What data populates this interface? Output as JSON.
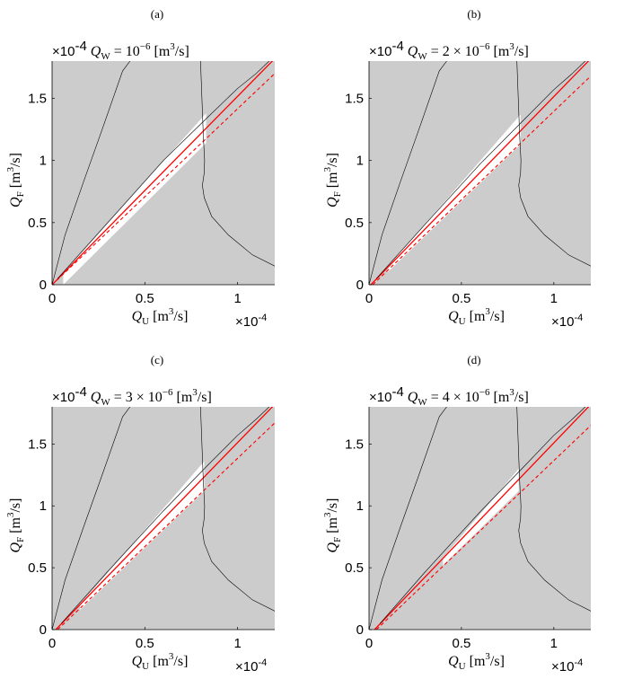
{
  "chart_data": [
    {
      "type": "area",
      "panel_label": "(a)",
      "title": "Q_W = 10^{-6} [m^3/s]",
      "title_parts": {
        "exp_prefix": "×10-4",
        "lhs": "Q",
        "lhs_sub": "W",
        "eq": " = ",
        "mantissa": "",
        "base": "10",
        "base_exp": "−6",
        "unit": "[m",
        "unit_exp": "3",
        "unit_tail": "/s]"
      },
      "xlabel": "Q_U [m^3/s]",
      "ylabel": "Q_F [m^3/s]",
      "x_exponent_label": "×10-4",
      "xlim": [
        0,
        1.2
      ],
      "ylim": [
        0,
        1.8
      ],
      "x_scale": "1e-4",
      "y_scale": "1e-4",
      "x_ticks": [
        0,
        0.5,
        1
      ],
      "x_tick_labels": [
        "0",
        "0.5",
        "1"
      ],
      "y_ticks": [
        0,
        0.5,
        1,
        1.5
      ],
      "y_tick_labels": [
        "0",
        "0.5",
        "1",
        "1.5"
      ],
      "background_color": "#cccccc",
      "feasible_color": "#ffffff",
      "series": [
        {
          "style": "solid-red",
          "color": "#ff0000",
          "x": [
            0,
            1.2
          ],
          "y": [
            0,
            1.82
          ]
        },
        {
          "style": "dashed-red",
          "color": "#ff0000",
          "x": [
            0,
            1.2
          ],
          "y": [
            0,
            1.7
          ]
        },
        {
          "style": "thin-black",
          "color": "#000000",
          "x": [
            0,
            0.07,
            0.17,
            0.27,
            0.38,
            0.42
          ],
          "y": [
            0,
            0.4,
            0.83,
            1.25,
            1.72,
            1.8
          ]
        },
        {
          "style": "thin-black",
          "color": "#000000",
          "x": [
            0.8,
            0.805,
            0.81,
            0.815,
            0.822,
            0.82,
            0.81,
            0.82,
            0.86,
            0.95,
            1.08,
            1.2
          ],
          "y": [
            1.8,
            1.6,
            1.4,
            1.2,
            1.0,
            0.9,
            0.8,
            0.7,
            0.55,
            0.4,
            0.24,
            0.15
          ]
        },
        {
          "style": "thin-black",
          "color": "#000000",
          "x": [
            0.03,
            0.3,
            0.6,
            0.84,
            1.0,
            1.1,
            1.17
          ],
          "y": [
            0.05,
            0.5,
            1.0,
            1.35,
            1.58,
            1.7,
            1.8
          ]
        }
      ],
      "feasible_region": {
        "x": [
          0.06,
          0.83,
          0.83,
          0.06
        ],
        "y": [
          0.09,
          1.38,
          1.14,
          0.0
        ]
      }
    },
    {
      "type": "area",
      "panel_label": "(b)",
      "title": "Q_W = 2 × 10^{-6} [m^3/s]",
      "title_parts": {
        "exp_prefix": "×10-4",
        "lhs": "Q",
        "lhs_sub": "W",
        "eq": " = ",
        "mantissa": "2 × ",
        "base": "10",
        "base_exp": "−6",
        "unit": "[m",
        "unit_exp": "3",
        "unit_tail": "/s]"
      },
      "xlabel": "Q_U [m^3/s]",
      "ylabel": "Q_F [m^3/s]",
      "x_exponent_label": "×10-4",
      "xlim": [
        0,
        1.2
      ],
      "ylim": [
        0,
        1.8
      ],
      "x_scale": "1e-4",
      "y_scale": "1e-4",
      "x_ticks": [
        0,
        0.5,
        1
      ],
      "x_tick_labels": [
        "0",
        "0.5",
        "1"
      ],
      "y_ticks": [
        0,
        0.5,
        1,
        1.5
      ],
      "y_tick_labels": [
        "0",
        "0.5",
        "1",
        "1.5"
      ],
      "background_color": "#cccccc",
      "feasible_color": "#ffffff",
      "series": [
        {
          "style": "solid-red",
          "color": "#ff0000",
          "x": [
            0.01,
            1.2
          ],
          "y": [
            0,
            1.82
          ]
        },
        {
          "style": "dashed-red",
          "color": "#ff0000",
          "x": [
            0.02,
            1.2
          ],
          "y": [
            0,
            1.68
          ]
        },
        {
          "style": "thin-black",
          "color": "#000000",
          "x": [
            0,
            0.07,
            0.17,
            0.27,
            0.38,
            0.42
          ],
          "y": [
            0,
            0.4,
            0.83,
            1.25,
            1.72,
            1.8
          ]
        },
        {
          "style": "thin-black",
          "color": "#000000",
          "x": [
            0.8,
            0.805,
            0.81,
            0.815,
            0.822,
            0.82,
            0.81,
            0.82,
            0.86,
            0.95,
            1.08,
            1.2
          ],
          "y": [
            1.8,
            1.6,
            1.4,
            1.2,
            1.0,
            0.9,
            0.8,
            0.7,
            0.55,
            0.4,
            0.24,
            0.15
          ]
        },
        {
          "style": "thin-black",
          "color": "#000000",
          "x": [
            0.04,
            0.3,
            0.6,
            0.84,
            1.0,
            1.1,
            1.17
          ],
          "y": [
            0.05,
            0.48,
            0.97,
            1.33,
            1.57,
            1.7,
            1.8
          ]
        }
      ],
      "feasible_region": {
        "x": [
          0.1,
          0.82,
          0.82,
          0.1
        ],
        "y": [
          0.14,
          1.37,
          1.13,
          0.1
        ]
      }
    },
    {
      "type": "area",
      "panel_label": "(c)",
      "title": "Q_W = 3 × 10^{-6} [m^3/s]",
      "title_parts": {
        "exp_prefix": "×10-4",
        "lhs": "Q",
        "lhs_sub": "W",
        "eq": " = ",
        "mantissa": "3 × ",
        "base": "10",
        "base_exp": "−6",
        "unit": "[m",
        "unit_exp": "3",
        "unit_tail": "/s]"
      },
      "xlabel": "Q_U [m^3/s]",
      "ylabel": "Q_F [m^3/s]",
      "x_exponent_label": "×10-4",
      "xlim": [
        0,
        1.2
      ],
      "ylim": [
        0,
        1.8
      ],
      "x_scale": "1e-4",
      "y_scale": "1e-4",
      "x_ticks": [
        0,
        0.5,
        1
      ],
      "x_tick_labels": [
        "0",
        "0.5",
        "1"
      ],
      "y_ticks": [
        0,
        0.5,
        1,
        1.5
      ],
      "y_tick_labels": [
        "0",
        "0.5",
        "1",
        "1.5"
      ],
      "background_color": "#cccccc",
      "feasible_color": "#ffffff",
      "series": [
        {
          "style": "solid-red",
          "color": "#ff0000",
          "x": [
            0.02,
            1.2
          ],
          "y": [
            0,
            1.82
          ]
        },
        {
          "style": "dashed-red",
          "color": "#ff0000",
          "x": [
            0.03,
            1.2
          ],
          "y": [
            0,
            1.67
          ]
        },
        {
          "style": "thin-black",
          "color": "#000000",
          "x": [
            0,
            0.07,
            0.17,
            0.27,
            0.38,
            0.42
          ],
          "y": [
            0,
            0.4,
            0.83,
            1.25,
            1.72,
            1.8
          ]
        },
        {
          "style": "thin-black",
          "color": "#000000",
          "x": [
            0.8,
            0.805,
            0.81,
            0.815,
            0.822,
            0.82,
            0.81,
            0.82,
            0.86,
            0.95,
            1.08,
            1.2
          ],
          "y": [
            1.8,
            1.6,
            1.4,
            1.2,
            1.0,
            0.9,
            0.8,
            0.7,
            0.55,
            0.4,
            0.24,
            0.15
          ]
        },
        {
          "style": "thin-black",
          "color": "#000000",
          "x": [
            0.05,
            0.3,
            0.6,
            0.84,
            1.0,
            1.1,
            1.17
          ],
          "y": [
            0.05,
            0.47,
            0.96,
            1.33,
            1.57,
            1.7,
            1.8
          ]
        }
      ],
      "feasible_region": {
        "x": [
          0.15,
          0.82,
          0.82,
          0.15
        ],
        "y": [
          0.2,
          1.36,
          1.12,
          0.16
        ]
      }
    },
    {
      "type": "area",
      "panel_label": "(d)",
      "title": "Q_W = 4 × 10^{-6} [m^3/s]",
      "title_parts": {
        "exp_prefix": "×10-4",
        "lhs": "Q",
        "lhs_sub": "W",
        "eq": " = ",
        "mantissa": "4 × ",
        "base": "10",
        "base_exp": "−6",
        "unit": "[m",
        "unit_exp": "3",
        "unit_tail": "/s]"
      },
      "xlabel": "Q_U [m^3/s]",
      "ylabel": "Q_F [m^3/s]",
      "x_exponent_label": "×10-4",
      "xlim": [
        0,
        1.2
      ],
      "ylim": [
        0,
        1.8
      ],
      "x_scale": "1e-4",
      "y_scale": "1e-4",
      "x_ticks": [
        0,
        0.5,
        1
      ],
      "x_tick_labels": [
        "0",
        "0.5",
        "1"
      ],
      "y_ticks": [
        0,
        0.5,
        1,
        1.5
      ],
      "y_tick_labels": [
        "0",
        "0.5",
        "1",
        "1.5"
      ],
      "background_color": "#cccccc",
      "feasible_color": "#ffffff",
      "series": [
        {
          "style": "solid-red",
          "color": "#ff0000",
          "x": [
            0.03,
            1.2
          ],
          "y": [
            0,
            1.82
          ]
        },
        {
          "style": "dashed-red",
          "color": "#ff0000",
          "x": [
            0.04,
            1.2
          ],
          "y": [
            0,
            1.65
          ]
        },
        {
          "style": "thin-black",
          "color": "#000000",
          "x": [
            0,
            0.07,
            0.17,
            0.27,
            0.38,
            0.42
          ],
          "y": [
            0,
            0.4,
            0.83,
            1.25,
            1.72,
            1.8
          ]
        },
        {
          "style": "thin-black",
          "color": "#000000",
          "x": [
            0.8,
            0.805,
            0.81,
            0.815,
            0.822,
            0.82,
            0.81,
            0.82,
            0.86,
            0.95,
            1.08,
            1.2
          ],
          "y": [
            1.8,
            1.6,
            1.4,
            1.2,
            1.0,
            0.9,
            0.8,
            0.7,
            0.55,
            0.4,
            0.24,
            0.15
          ]
        },
        {
          "style": "thin-black",
          "color": "#000000",
          "x": [
            0.06,
            0.3,
            0.6,
            0.84,
            1.0,
            1.1,
            1.17
          ],
          "y": [
            0.05,
            0.46,
            0.95,
            1.32,
            1.57,
            1.7,
            1.8
          ]
        }
      ],
      "feasible_region": {
        "x": [
          0.4,
          0.81,
          0.81,
          0.4
        ],
        "y": [
          0.58,
          1.3,
          1.12,
          0.52
        ]
      }
    }
  ]
}
